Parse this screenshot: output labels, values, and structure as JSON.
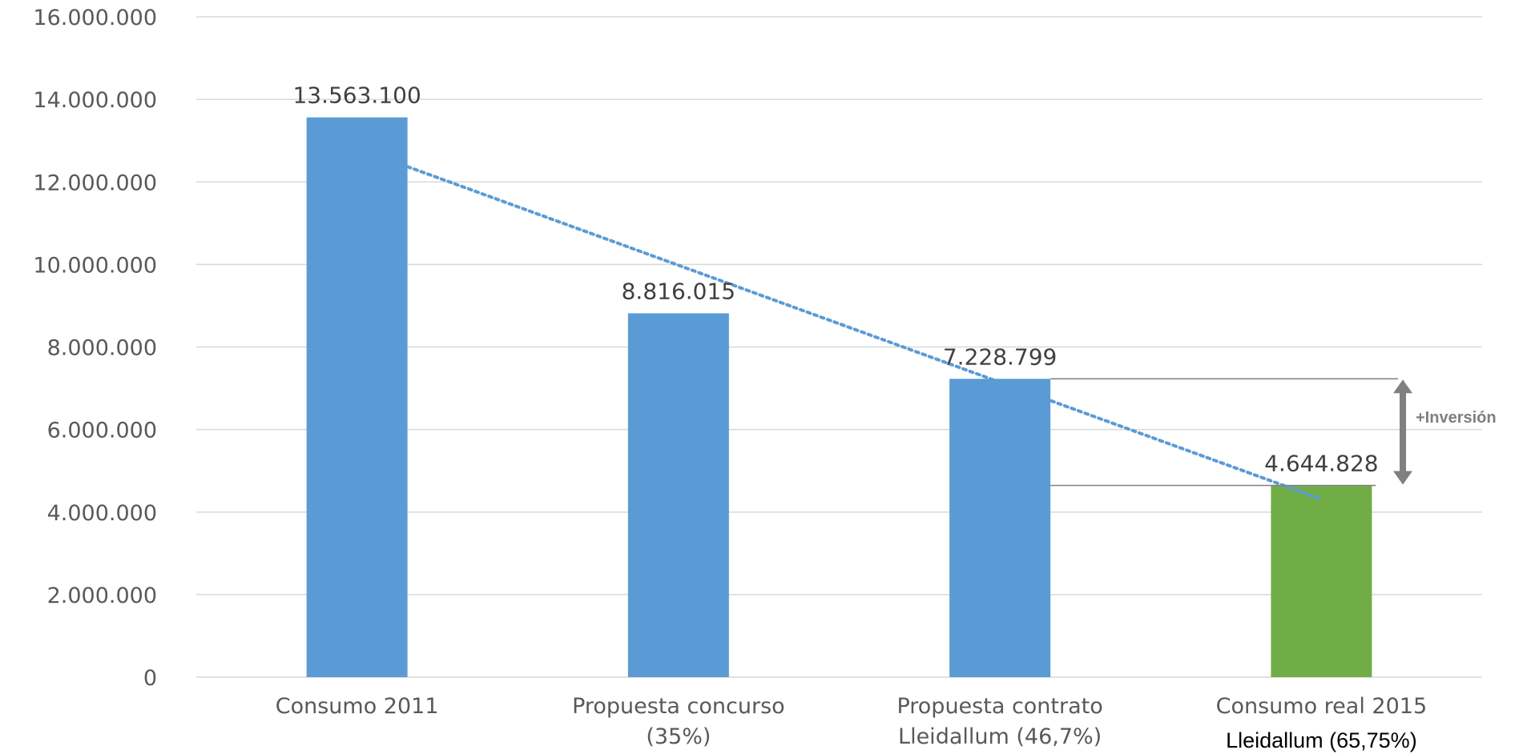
{
  "chart_data": {
    "type": "bar",
    "ylim": [
      0,
      16000000
    ],
    "yticks": [
      "0",
      "2.000.000",
      "4.000.000",
      "6.000.000",
      "8.000.000",
      "10.000.000",
      "12.000.000",
      "14.000.000",
      "16.000.000"
    ],
    "grid": true,
    "legend": "none",
    "categories": [
      {
        "lines": [
          "Consumo 2011"
        ],
        "value": 13563100,
        "value_label": "13.563.100",
        "color": "#5b9bd5"
      },
      {
        "lines": [
          "Propuesta concurso",
          "(35%)"
        ],
        "value": 8816015,
        "value_label": "8.816.015",
        "color": "#5b9bd5"
      },
      {
        "lines": [
          "Propuesta contrato",
          "Lleidallum (46,7%)"
        ],
        "value": 7228799,
        "value_label": "7.228.799",
        "color": "#5b9bd5"
      },
      {
        "lines": [
          "Consumo real 2015"
        ],
        "extra_line": "Lleidallum (65,75%)",
        "value": 4644828,
        "value_label": "4.644.828",
        "color": "#70ad47"
      }
    ],
    "trendline": {
      "style": "dotted",
      "color": "#5b9bd5"
    },
    "annotation": {
      "label": "+Inversión",
      "from_value": 7228799,
      "to_value": 4644828,
      "color": "#808080"
    }
  }
}
